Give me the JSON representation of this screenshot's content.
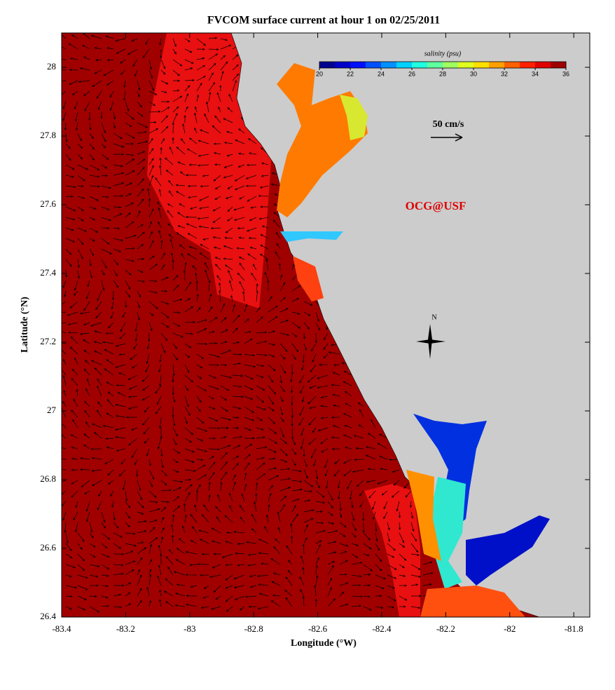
{
  "chart_data": {
    "type": "map",
    "title": "FVCOM surface current at hour 1 on 02/25/2011",
    "xlabel": "Longitude (°W)",
    "ylabel": "Latitude (°N)",
    "xlim": [
      -83.4,
      -81.75
    ],
    "ylim": [
      26.4,
      28.1
    ],
    "xticks": [
      -83.4,
      -83.2,
      -83,
      -82.8,
      -82.6,
      -82.4,
      -82.2,
      -82,
      -81.8
    ],
    "yticks": [
      26.4,
      26.6,
      26.8,
      27,
      27.2,
      27.4,
      27.6,
      27.8,
      28
    ],
    "colorbar": {
      "label": "salinity (psu)",
      "range": [
        20,
        36
      ],
      "ticks": [
        20,
        22,
        24,
        26,
        28,
        30,
        32,
        34,
        36
      ],
      "colors": [
        "#00008f",
        "#0000c8",
        "#0010ff",
        "#0050ff",
        "#0090ff",
        "#00d0ff",
        "#20ffdf",
        "#60ff9f",
        "#a0ff60",
        "#dfff20",
        "#ffe000",
        "#ffa000",
        "#ff6000",
        "#ff2000",
        "#df0000",
        "#9f0000"
      ]
    },
    "scale_label": "50 cm/s",
    "watermark": "OCG@USF",
    "compass_label": "N"
  }
}
